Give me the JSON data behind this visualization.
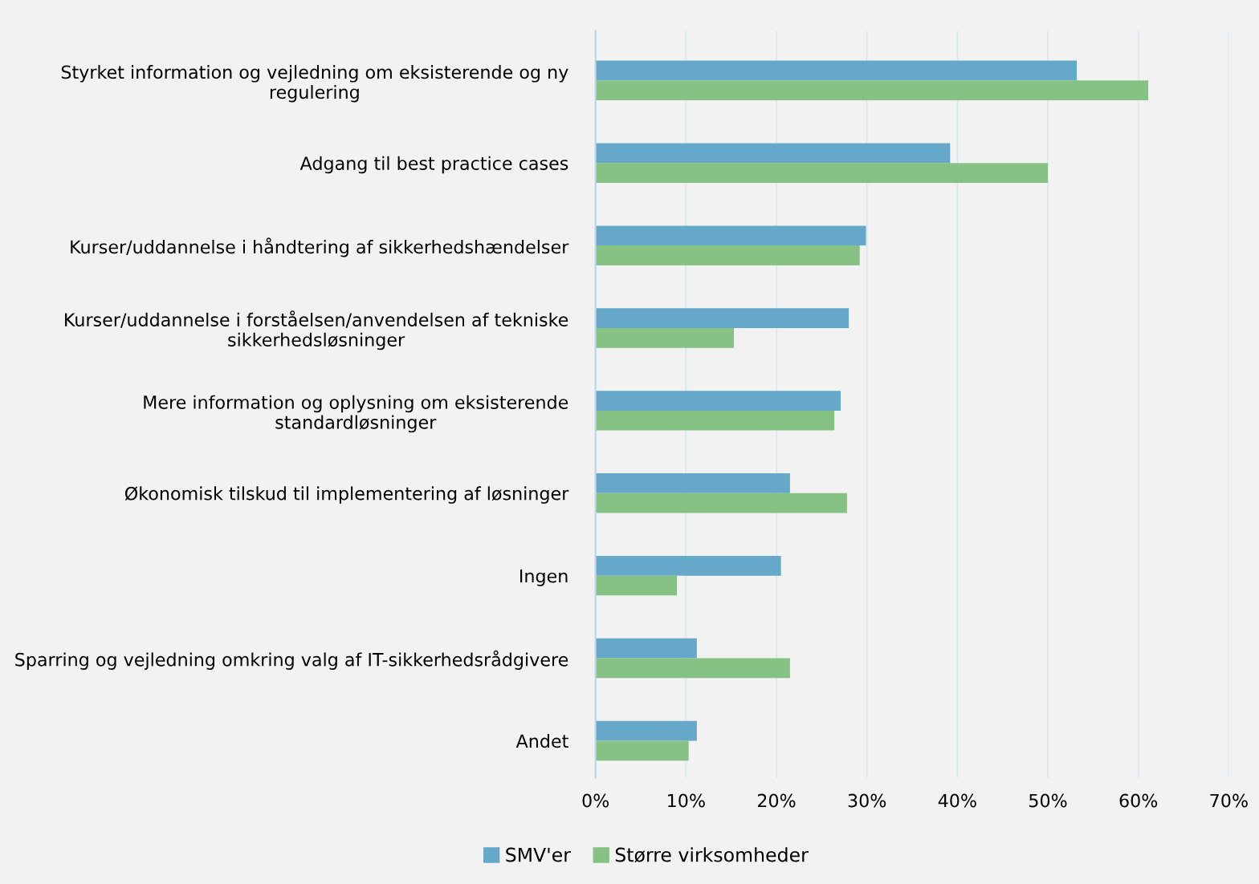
{
  "chart_data": {
    "type": "bar",
    "orientation": "horizontal",
    "categories": [
      "Styrket information og vejledning om eksisterende og ny\nregulering",
      "Adgang til best practice cases",
      "Kurser/uddannelse i håndtering af sikkerhedshændelser",
      "Kurser/uddannelse i forståelsen/anvendelsen af tekniske\nsikkerhedsløsninger",
      "Mere information og oplysning om eksisterende\nstandardløsninger",
      "Økonomisk tilskud til implementering af løsninger",
      "Ingen",
      "Sparring og vejledning omkring valg af IT-sikkerhedsrådgivere",
      "Andet"
    ],
    "series": [
      {
        "name": "SMV'er",
        "color": "#65a8c9",
        "values": [
          53.2,
          39.2,
          29.9,
          28.0,
          27.1,
          21.5,
          20.5,
          11.2,
          11.2
        ]
      },
      {
        "name": "Større virksomheder",
        "color": "#85c283",
        "values": [
          61.1,
          50.0,
          29.2,
          15.3,
          26.4,
          27.8,
          9.0,
          21.5,
          10.3
        ]
      }
    ],
    "xlim": [
      0,
      70
    ],
    "xticks": [
      {
        "value": 0,
        "label": "0%"
      },
      {
        "value": 10,
        "label": "10%"
      },
      {
        "value": 20,
        "label": "20%"
      },
      {
        "value": 30,
        "label": "30%"
      },
      {
        "value": 40,
        "label": "40%"
      },
      {
        "value": 50,
        "label": "50%"
      },
      {
        "value": 60,
        "label": "60%"
      },
      {
        "value": 70,
        "label": "70%"
      }
    ],
    "grid": "x",
    "legend": "bottom"
  }
}
